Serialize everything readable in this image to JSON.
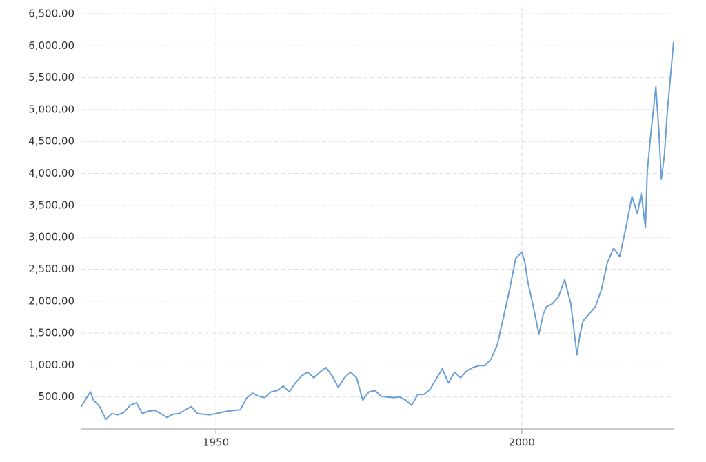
{
  "chart_data": {
    "type": "line",
    "x": [
      1928,
      1929,
      1929.5,
      1930,
      1931,
      1932,
      1933,
      1934,
      1935,
      1936,
      1937,
      1938,
      1939,
      1940,
      1941,
      1942,
      1943,
      1944,
      1945,
      1946,
      1947,
      1948,
      1949,
      1950,
      1951,
      1952,
      1953,
      1954,
      1955,
      1956,
      1957,
      1958,
      1959,
      1960,
      1961,
      1962,
      1963,
      1964,
      1965,
      1966,
      1967,
      1968,
      1969,
      1970,
      1971,
      1972,
      1973,
      1974,
      1975,
      1976,
      1977,
      1978,
      1979,
      1980,
      1981,
      1982,
      1983,
      1984,
      1985,
      1986,
      1987,
      1988,
      1989,
      1990,
      1991,
      1992,
      1993,
      1994,
      1995,
      1996,
      1997,
      1998,
      1999,
      2000,
      2000.5,
      2001,
      2002,
      2002.8,
      2003.5,
      2004,
      2005,
      2006,
      2007,
      2008,
      2009,
      2009.5,
      2010,
      2011,
      2012,
      2013,
      2014,
      2015,
      2016,
      2017,
      2018,
      2018.9,
      2019.5,
      2020.2,
      2020.5,
      2021,
      2021.9,
      2022.4,
      2022.8,
      2023.3,
      2023.8,
      2024.3,
      2024.8
    ],
    "series": [
      {
        "color": "#6a9fd4",
        "values": [
          350,
          510,
          580,
          450,
          350,
          150,
          240,
          220,
          260,
          370,
          410,
          240,
          280,
          290,
          240,
          180,
          230,
          240,
          300,
          350,
          240,
          230,
          220,
          240,
          260,
          280,
          290,
          300,
          480,
          560,
          510,
          490,
          580,
          600,
          670,
          580,
          720,
          830,
          890,
          800,
          890,
          960,
          830,
          650,
          800,
          890,
          800,
          450,
          580,
          600,
          510,
          500,
          490,
          500,
          450,
          370,
          540,
          540,
          620,
          780,
          940,
          720,
          890,
          800,
          910,
          960,
          990,
          990,
          1100,
          1320,
          1750,
          2180,
          2670,
          2770,
          2610,
          2290,
          1860,
          1480,
          1800,
          1910,
          1960,
          2070,
          2340,
          1960,
          1160,
          1480,
          1690,
          1800,
          1910,
          2180,
          2610,
          2830,
          2700,
          3150,
          3640,
          3370,
          3690,
          3150,
          4020,
          4550,
          5360,
          4660,
          3910,
          4290,
          4990,
          5530,
          6060
        ]
      }
    ],
    "xlim": [
      1927.9,
      2024.8
    ],
    "xticks": [
      1950,
      2000
    ],
    "ylim": [
      0,
      6500
    ],
    "yticks": [
      {
        "value": 500,
        "label": "500.00"
      },
      {
        "value": 1000,
        "label": "1,000.00"
      },
      {
        "value": 1500,
        "label": "1,500.00"
      },
      {
        "value": 2000,
        "label": "2,000.00"
      },
      {
        "value": 2500,
        "label": "2,500.00"
      },
      {
        "value": 3000,
        "label": "3,000.00"
      },
      {
        "value": 3500,
        "label": "3,500.00"
      },
      {
        "value": 4000,
        "label": "4,000.00"
      },
      {
        "value": 4500,
        "label": "4,500.00"
      },
      {
        "value": 5000,
        "label": "5,000.00"
      },
      {
        "value": 5500,
        "label": "5,500.00"
      },
      {
        "value": 6000,
        "label": "6,000.00"
      },
      {
        "value": 6500,
        "label": "6,500.00"
      }
    ],
    "grid": true
  }
}
